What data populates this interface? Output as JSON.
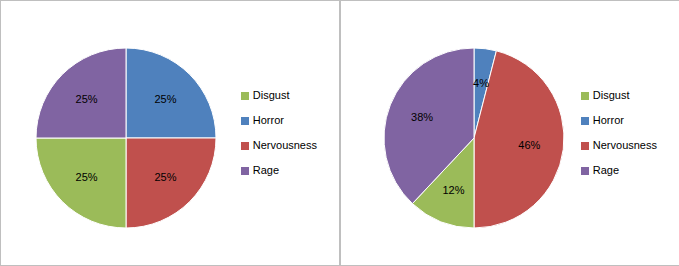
{
  "chart_data": [
    {
      "type": "pie",
      "categories": [
        "Horror",
        "Nervousness",
        "Disgust",
        "Rage"
      ],
      "values": [
        25,
        25,
        25,
        25
      ],
      "value_labels": [
        "25%",
        "25%",
        "25%",
        "25%"
      ],
      "colors": [
        "#4f81bd",
        "#c0504d",
        "#9bbb59",
        "#8064a2"
      ],
      "data_labels": true,
      "legend": "right"
    },
    {
      "type": "pie",
      "categories": [
        "Horror",
        "Nervousness",
        "Disgust",
        "Rage"
      ],
      "values": [
        4,
        46,
        12,
        38
      ],
      "value_labels": [
        "4%",
        "46%",
        "12%",
        "38%"
      ],
      "colors": [
        "#4f81bd",
        "#c0504d",
        "#9bbb59",
        "#8064a2"
      ],
      "data_labels": true,
      "legend": "right"
    }
  ]
}
